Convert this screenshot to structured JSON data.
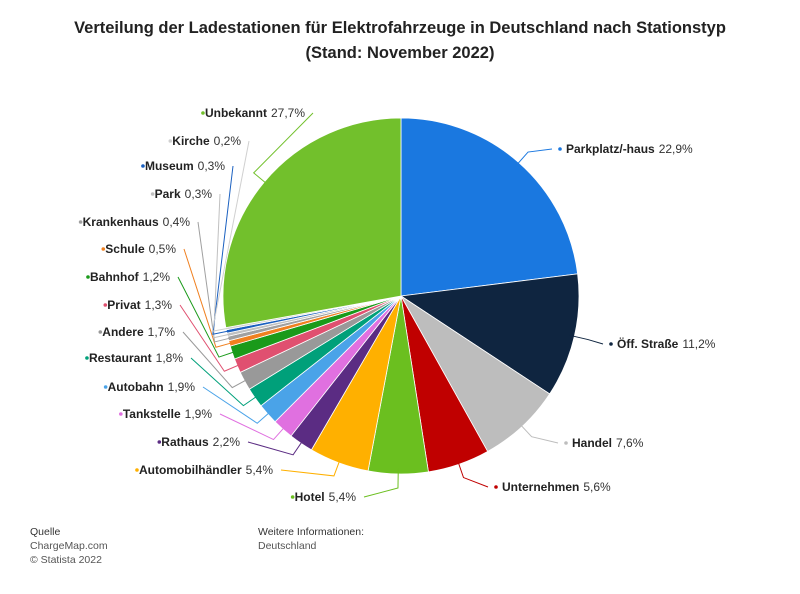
{
  "chart_data": {
    "type": "pie",
    "title": "Verteilung der Ladestationen für Elektrofahrzeuge in Deutschland nach Stationstyp",
    "subtitle": "(Stand: November 2022)",
    "categories": [
      "Parkplatz/-haus",
      "Öff. Straße",
      "Handel",
      "Unternehmen",
      "Hotel",
      "Automobilhändler",
      "Rathaus",
      "Tankstelle",
      "Autobahn",
      "Restaurant",
      "Andere",
      "Privat",
      "Bahnhof",
      "Schule",
      "Krankenhaus",
      "Park",
      "Museum",
      "Kirche",
      "Unbekannt"
    ],
    "values": [
      22.9,
      11.2,
      7.6,
      5.6,
      5.4,
      5.4,
      2.2,
      1.9,
      1.9,
      1.8,
      1.7,
      1.3,
      1.2,
      0.5,
      0.4,
      0.3,
      0.3,
      0.2,
      27.7
    ],
    "value_labels": [
      "22,9%",
      "11,2%",
      "7,6%",
      "5,6%",
      "5,4%",
      "5,4%",
      "2,2%",
      "1,9%",
      "1,9%",
      "1,8%",
      "1,7%",
      "1,3%",
      "1,2%",
      "0,5%",
      "0,4%",
      "0,3%",
      "0,3%",
      "0,2%",
      "27,7%"
    ],
    "colors": [
      "#1a78e0",
      "#0f2540",
      "#bdbdbd",
      "#c00000",
      "#6bbf1f",
      "#ffb000",
      "#5b2c83",
      "#e070e0",
      "#4aa3e8",
      "#00a07a",
      "#999999",
      "#e05070",
      "#1a9a1a",
      "#f08020",
      "#a0a0a0",
      "#c0c0c0",
      "#1a60c0",
      "#d0d0d0",
      "#72c02c"
    ]
  },
  "footer": {
    "source_label": "Quelle",
    "source": "ChargeMap.com",
    "copyright": "© Statista 2022",
    "info_label": "Weitere Informationen:",
    "info": "Deutschland"
  }
}
